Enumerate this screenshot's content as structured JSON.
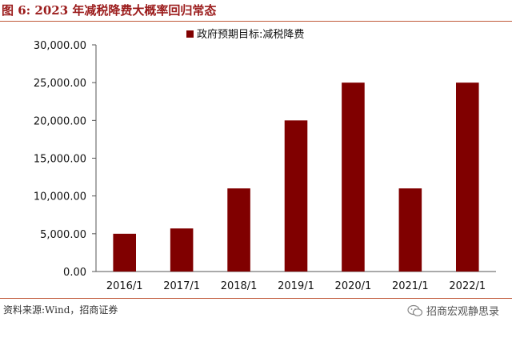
{
  "figure_title": "图 6:  2023 年减税降费大概率回归常态",
  "source_note": "资料来源:Wind，招商证券",
  "watermark": {
    "text": "招商宏观静思录",
    "icon": "wechat-icon"
  },
  "chart_data": {
    "type": "bar",
    "title": "",
    "xlabel": "",
    "ylabel": "",
    "categories": [
      "2016/1",
      "2017/1",
      "2018/1",
      "2019/1",
      "2020/1",
      "2021/1",
      "2022/1"
    ],
    "series": [
      {
        "name": "政府预期目标:减税降费",
        "values": [
          5000,
          5700,
          11000,
          20000,
          25000,
          11000,
          25000
        ],
        "color": "#800000"
      }
    ],
    "ylim": [
      0,
      30000
    ],
    "yticks": [
      0,
      5000,
      10000,
      15000,
      20000,
      25000,
      30000
    ],
    "ytick_labels": [
      "0.00",
      "5,000.00",
      "10,000.00",
      "15,000.00",
      "20,000.00",
      "25,000.00",
      "30,000.00"
    ],
    "grid": false,
    "legend_position": "top-right"
  }
}
